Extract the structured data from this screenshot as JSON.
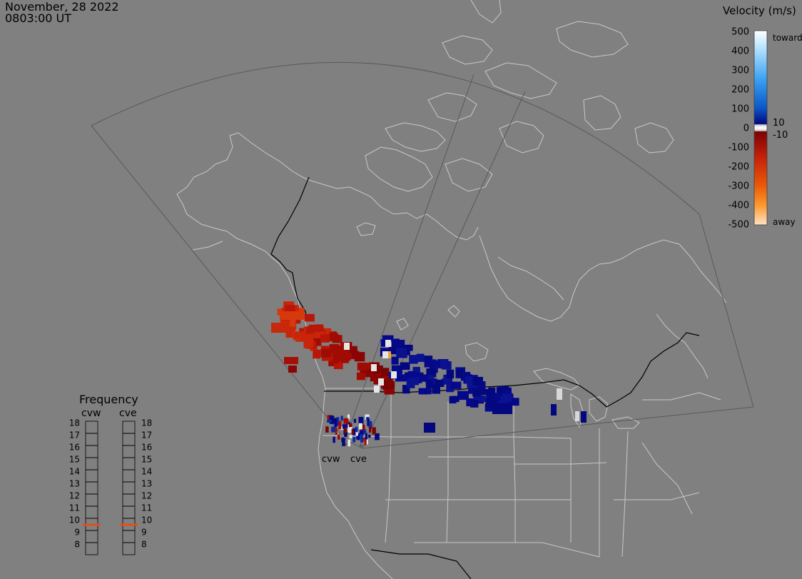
{
  "header": {
    "date": "November, 28 2022",
    "time": "0803:00 UT"
  },
  "velocity_legend": {
    "title": "Velocity (m/s)",
    "tick_labels": [
      "500",
      "400",
      "300",
      "200",
      "100",
      "0",
      "-100",
      "-200",
      "-300",
      "-400",
      "-500"
    ],
    "toward_label": "toward",
    "away_label": "away",
    "plus_threshold": "10",
    "minus_threshold": "-10",
    "colors": {
      "toward_high": "#dff2ff",
      "toward_mid": "#1b8ff0",
      "toward_low": "#04087e",
      "zero_band": "#ffffff",
      "away_low": "#7a0303",
      "away_mid": "#e0550c",
      "away_high": "#ffd6b0"
    }
  },
  "frequency_panel": {
    "title": "Frequency",
    "radar_labels": [
      "cvw",
      "cve"
    ],
    "levels": [
      "18",
      "17",
      "16",
      "15",
      "14",
      "13",
      "12",
      "11",
      "10",
      "9",
      "8"
    ],
    "cvw_frequency": 10.5,
    "cve_frequency": 10.5,
    "marker_color": "#e0501a"
  },
  "map": {
    "radar_site_labels": [
      "cvw",
      "cve"
    ],
    "background": "#808080",
    "land_outline_color": "#c8c8c8",
    "border_color": "#000000",
    "fov_color": "#595959"
  }
}
